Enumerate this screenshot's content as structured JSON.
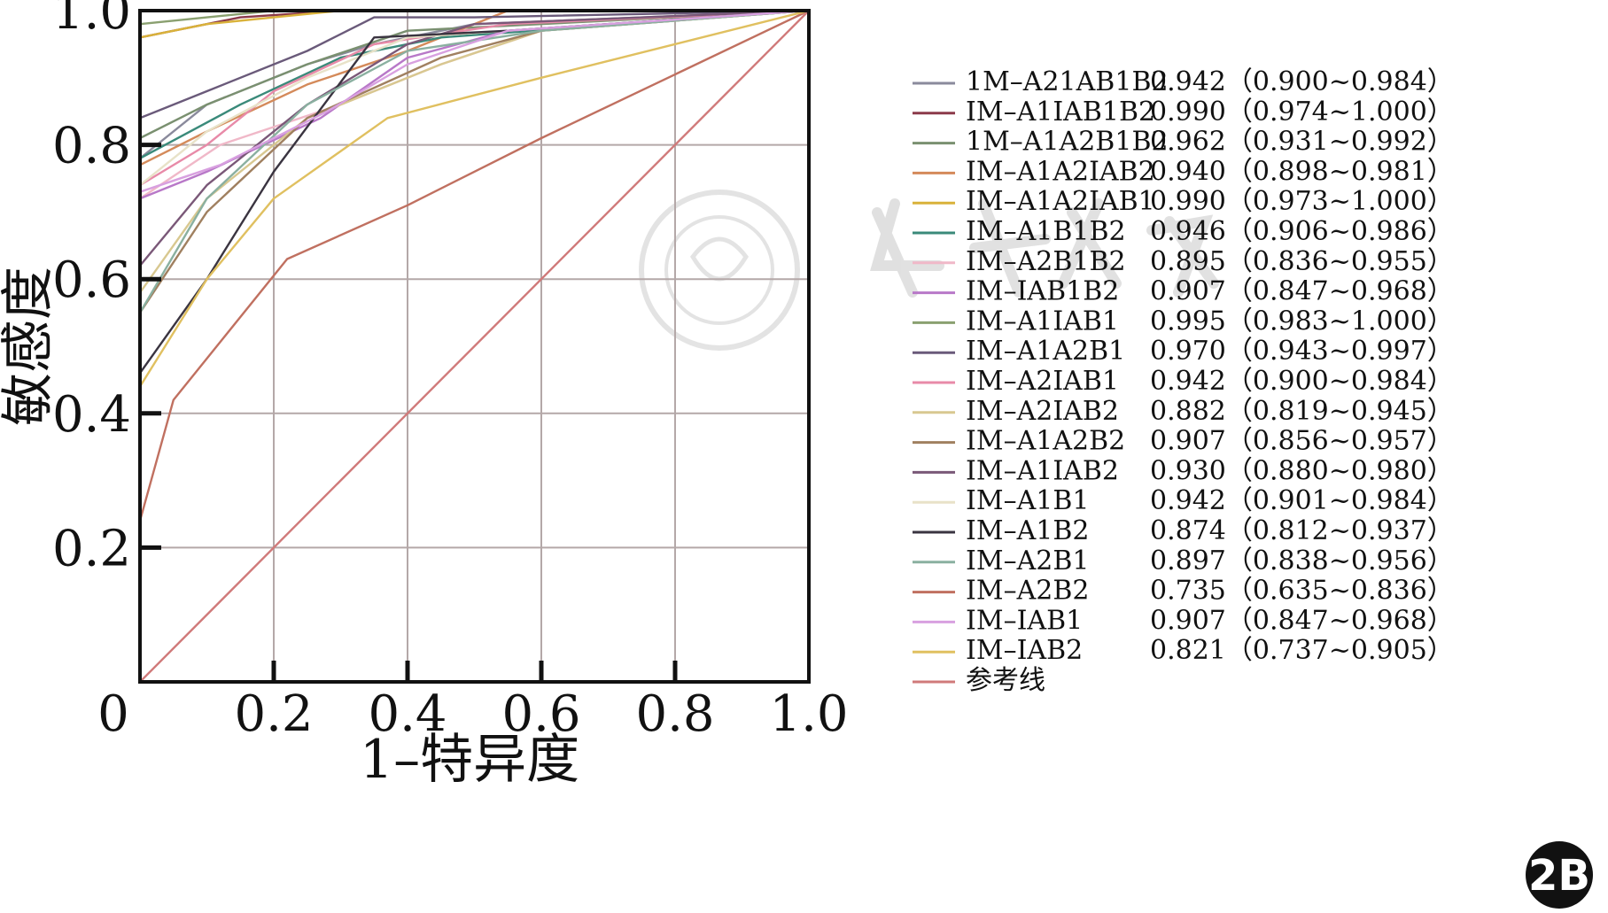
{
  "chart_data": {
    "type": "line",
    "title": "",
    "xlabel": "1–特异度",
    "ylabel": "敏感度",
    "xlim": [
      0,
      1
    ],
    "ylim": [
      0,
      1
    ],
    "x_ticks": [
      "0",
      "0.2",
      "0.4",
      "0.6",
      "0.8",
      "1.0"
    ],
    "y_ticks": [
      "0.2",
      "0.4",
      "0.6",
      "0.8",
      "1.0"
    ],
    "grid": true,
    "legend_position": "right",
    "series": [
      {
        "name": "1M–A21AB1B2",
        "auc": "0.942（0.900~0.984）",
        "color": "#8a8a9c",
        "x": [
          0,
          0,
          0.1,
          0.25,
          0.35,
          0.5,
          1
        ],
        "y": [
          0.7,
          0.78,
          0.86,
          0.92,
          0.95,
          0.98,
          1
        ]
      },
      {
        "name": "IM–A1IAB1B2",
        "auc": "0.990（0.974~1.000）",
        "color": "#8b3a4a",
        "x": [
          0,
          0,
          0.05,
          0.15,
          0.3,
          1
        ],
        "y": [
          0.8,
          0.96,
          0.97,
          0.99,
          1,
          1
        ]
      },
      {
        "name": "1M–A1A2B1B2",
        "auc": "0.962（0.931~0.992）",
        "color": "#7a9070",
        "x": [
          0,
          0,
          0.1,
          0.25,
          0.4,
          1
        ],
        "y": [
          0.5,
          0.81,
          0.86,
          0.92,
          0.97,
          1
        ]
      },
      {
        "name": "IM–A1A2IAB2",
        "auc": "0.940（0.898~0.981）",
        "color": "#d48a5a",
        "x": [
          0,
          0,
          0.1,
          0.25,
          0.4,
          0.55,
          1
        ],
        "y": [
          0.5,
          0.77,
          0.82,
          0.89,
          0.94,
          1,
          1
        ]
      },
      {
        "name": "IM–A1A2IAB1",
        "auc": "0.990（0.973~1.000）",
        "color": "#d9b23a",
        "x": [
          0,
          0,
          0.1,
          0.2,
          0.3,
          1
        ],
        "y": [
          0.9,
          0.96,
          0.98,
          0.99,
          1,
          1
        ]
      },
      {
        "name": "IM–A1B1B2",
        "auc": "0.946（0.906~0.986）",
        "color": "#3a8a7a",
        "x": [
          0,
          0,
          0.15,
          0.3,
          0.45,
          1
        ],
        "y": [
          0.7,
          0.78,
          0.86,
          0.93,
          0.96,
          1
        ]
      },
      {
        "name": "IM–A2B1B2",
        "auc": "0.895（0.836~0.955）",
        "color": "#f0b8c8",
        "x": [
          0,
          0,
          0.12,
          0.3,
          0.45,
          0.6,
          1
        ],
        "y": [
          0.45,
          0.72,
          0.8,
          0.86,
          0.92,
          0.97,
          1
        ]
      },
      {
        "name": "IM–IAB1B2",
        "auc": "0.907（0.847~0.968）",
        "color": "#b878c8",
        "x": [
          0,
          0,
          0.1,
          0.27,
          0.4,
          0.55,
          1
        ],
        "y": [
          0.45,
          0.72,
          0.76,
          0.84,
          0.93,
          0.97,
          1
        ]
      },
      {
        "name": "IM–A1IAB1",
        "auc": "0.995（0.983~1.000）",
        "color": "#8aa070",
        "x": [
          0,
          0,
          0.1,
          0.2,
          1
        ],
        "y": [
          0.95,
          0.98,
          0.99,
          1,
          1
        ]
      },
      {
        "name": "IM–A1A2B1",
        "auc": "0.970（0.943~0.997）",
        "color": "#6a5a7a",
        "x": [
          0,
          0,
          0.1,
          0.25,
          0.35,
          0.5,
          1
        ],
        "y": [
          0.7,
          0.84,
          0.88,
          0.94,
          0.99,
          0.99,
          1
        ]
      },
      {
        "name": "IM–A2IAB1",
        "auc": "0.942（0.900~0.984）",
        "color": "#e88aa8",
        "x": [
          0,
          0,
          0.1,
          0.2,
          0.35,
          0.55,
          1
        ],
        "y": [
          0.45,
          0.74,
          0.8,
          0.88,
          0.95,
          0.98,
          1
        ]
      },
      {
        "name": "IM–A2IAB2",
        "auc": "0.882（0.819~0.945）",
        "color": "#d8c890",
        "x": [
          0,
          0,
          0.1,
          0.25,
          0.45,
          0.6,
          1
        ],
        "y": [
          0.42,
          0.58,
          0.72,
          0.84,
          0.92,
          0.97,
          1
        ]
      },
      {
        "name": "IM–A1A2B2",
        "auc": "0.907（0.856~0.957）",
        "color": "#a08060",
        "x": [
          0,
          0,
          0.1,
          0.25,
          0.45,
          0.6,
          1
        ],
        "y": [
          0.44,
          0.55,
          0.7,
          0.84,
          0.93,
          0.97,
          1
        ]
      },
      {
        "name": "IM–A1IAB2",
        "auc": "0.930（0.880~0.980）",
        "color": "#7a5878",
        "x": [
          0,
          0,
          0.1,
          0.25,
          0.4,
          0.5,
          1
        ],
        "y": [
          0.5,
          0.62,
          0.74,
          0.86,
          0.95,
          0.98,
          1
        ]
      },
      {
        "name": "IM–A1B1",
        "auc": "0.942（0.901~0.984）",
        "color": "#e8e2c8",
        "x": [
          0,
          0,
          0.1,
          0.25,
          0.4,
          1
        ],
        "y": [
          0.55,
          0.74,
          0.82,
          0.9,
          0.96,
          1
        ]
      },
      {
        "name": "IM–A1B2",
        "auc": "0.874（0.812~0.937）",
        "color": "#3a3440",
        "x": [
          0,
          0,
          0.1,
          0.2,
          0.35,
          0.55,
          1
        ],
        "y": [
          0.42,
          0.46,
          0.6,
          0.76,
          0.96,
          0.97,
          1
        ]
      },
      {
        "name": "IM–A2B1",
        "auc": "0.897（0.838~0.956）",
        "color": "#8ab0a0",
        "x": [
          0,
          0,
          0.1,
          0.25,
          0.4,
          0.6,
          1
        ],
        "y": [
          0.49,
          0.55,
          0.72,
          0.86,
          0.94,
          0.97,
          1
        ]
      },
      {
        "name": "IM–A2B2",
        "auc": "0.735（0.635~0.836）",
        "color": "#c07060",
        "x": [
          0,
          0,
          0.05,
          0.22,
          0.4,
          0.6,
          1
        ],
        "y": [
          0.17,
          0.24,
          0.42,
          0.63,
          0.71,
          0.81,
          1
        ]
      },
      {
        "name": "IM–IAB1",
        "auc": "0.907（0.847~0.968）",
        "color": "#d8a0e0",
        "x": [
          0,
          0,
          0.12,
          0.28,
          0.4,
          0.55,
          1
        ],
        "y": [
          0.45,
          0.73,
          0.77,
          0.85,
          0.92,
          0.97,
          1
        ]
      },
      {
        "name": "IM–IAB2",
        "auc": "0.821（0.737~0.905）",
        "color": "#e0c060",
        "x": [
          0,
          0,
          0.1,
          0.2,
          0.37,
          0.6,
          1
        ],
        "y": [
          0.42,
          0.44,
          0.6,
          0.72,
          0.84,
          0.9,
          1
        ]
      },
      {
        "name": "参考线",
        "auc": "",
        "color": "#d07a7a",
        "x": [
          0,
          1
        ],
        "y": [
          0,
          1
        ]
      }
    ]
  },
  "badge": "2B",
  "watermark": {
    "text": "中华医学会",
    "kind": "seal-and-watermark"
  }
}
